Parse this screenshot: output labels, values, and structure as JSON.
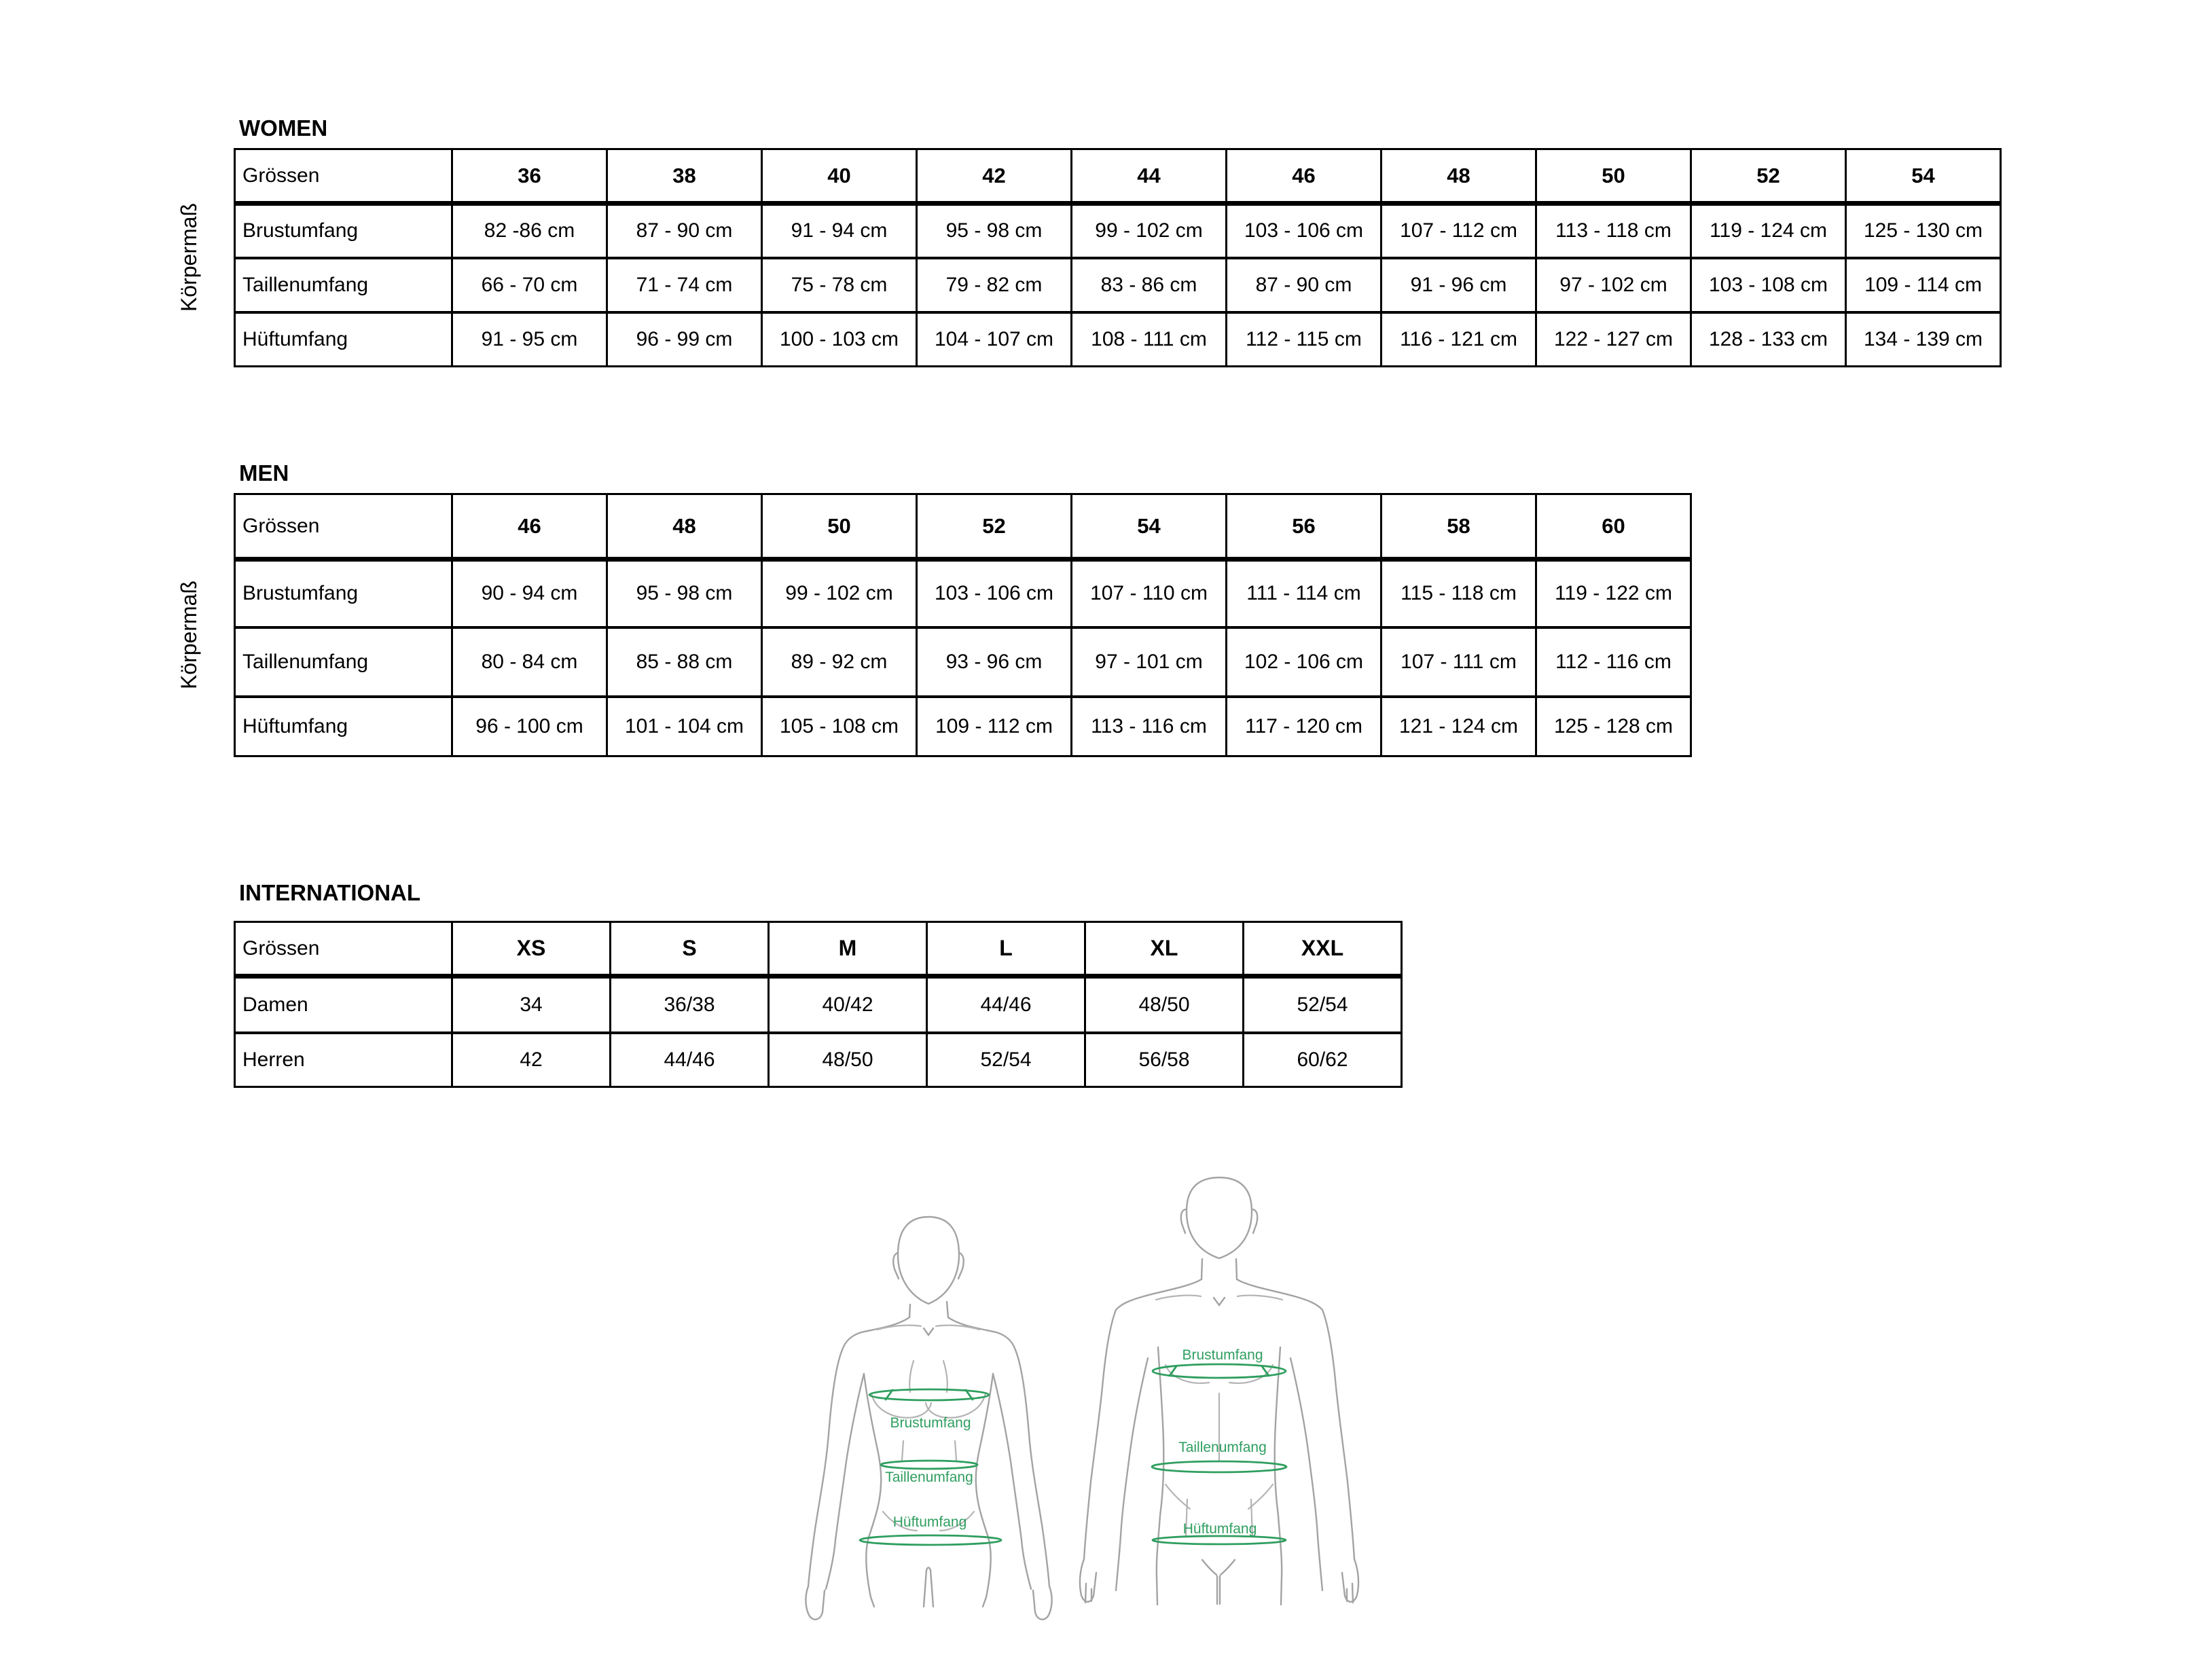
{
  "sections": [
    {
      "id": "women",
      "title": "WOMEN",
      "side_label": "Körpermaß",
      "corner_label": "Grössen",
      "sizes": [
        "36",
        "38",
        "40",
        "42",
        "44",
        "46",
        "48",
        "50",
        "52",
        "54"
      ],
      "rows": [
        {
          "label": "Brustumfang",
          "values": [
            "82 -86 cm",
            "87 - 90 cm",
            "91 - 94 cm",
            "95 - 98 cm",
            "99 - 102 cm",
            "103 - 106 cm",
            "107 - 112 cm",
            "113 - 118 cm",
            "119 - 124 cm",
            "125 - 130 cm"
          ]
        },
        {
          "label": "Taillenumfang",
          "values": [
            "66 - 70 cm",
            "71 - 74 cm",
            "75 - 78 cm",
            "79 - 82 cm",
            "83 - 86 cm",
            "87 - 90 cm",
            "91 - 96 cm",
            "97 - 102 cm",
            "103 - 108 cm",
            "109 - 114 cm"
          ]
        },
        {
          "label": "Hüftumfang",
          "values": [
            "91 - 95 cm",
            "96 - 99 cm",
            "100 - 103 cm",
            "104 - 107 cm",
            "108 - 111 cm",
            "112 - 115 cm",
            "116 - 121 cm",
            "122 - 127 cm",
            "128 - 133 cm",
            "134 - 139 cm"
          ]
        }
      ]
    },
    {
      "id": "men",
      "title": "MEN",
      "side_label": "Körpermaß",
      "corner_label": "Grössen",
      "sizes": [
        "46",
        "48",
        "50",
        "52",
        "54",
        "56",
        "58",
        "60"
      ],
      "rows": [
        {
          "label": "Brustumfang",
          "values": [
            "90 - 94 cm",
            "95 - 98 cm",
            "99 - 102 cm",
            "103 - 106 cm",
            "107 - 110 cm",
            "111 - 114 cm",
            "115 - 118 cm",
            "119 - 122 cm"
          ]
        },
        {
          "label": "Taillenumfang",
          "values": [
            "80 - 84 cm",
            "85 - 88 cm",
            "89 - 92 cm",
            "93 - 96 cm",
            "97 - 101 cm",
            "102 - 106 cm",
            "107 - 111 cm",
            "112 - 116 cm"
          ]
        },
        {
          "label": "Hüftumfang",
          "values": [
            "96 - 100 cm",
            "101 - 104 cm",
            "105 - 108 cm",
            "109 - 112 cm",
            "113 - 116 cm",
            "117 - 120 cm",
            "121 - 124 cm",
            "125 - 128 cm"
          ]
        }
      ]
    },
    {
      "id": "international",
      "title": "INTERNATIONAL",
      "side_label": "",
      "corner_label": "Grössen",
      "sizes": [
        "XS",
        "S",
        "M",
        "L",
        "XL",
        "XXL"
      ],
      "rows": [
        {
          "label": "Damen",
          "values": [
            "34",
            "36/38",
            "40/42",
            "44/46",
            "48/50",
            "52/54"
          ]
        },
        {
          "label": "Herren",
          "values": [
            "42",
            "44/46",
            "48/50",
            "52/54",
            "56/58",
            "60/62"
          ]
        }
      ]
    }
  ],
  "table_layout": [
    {
      "id": "women",
      "label_col_width": 320,
      "size_col_width": 228
    },
    {
      "id": "men",
      "label_col_width": 320,
      "size_col_width": 228
    },
    {
      "id": "international",
      "label_col_width": 320,
      "size_col_width": 233
    }
  ],
  "diagram": {
    "female": {
      "bust_label": "Brustumfang",
      "waist_label": "Taillenumfang",
      "hip_label": "Hüftumfang"
    },
    "male": {
      "bust_label": "Brustumfang",
      "waist_label": "Taillenumfang",
      "hip_label": "Hüftumfang"
    },
    "colors": {
      "measure": "#2f9e5f",
      "outline": "#a3a3a3"
    }
  }
}
